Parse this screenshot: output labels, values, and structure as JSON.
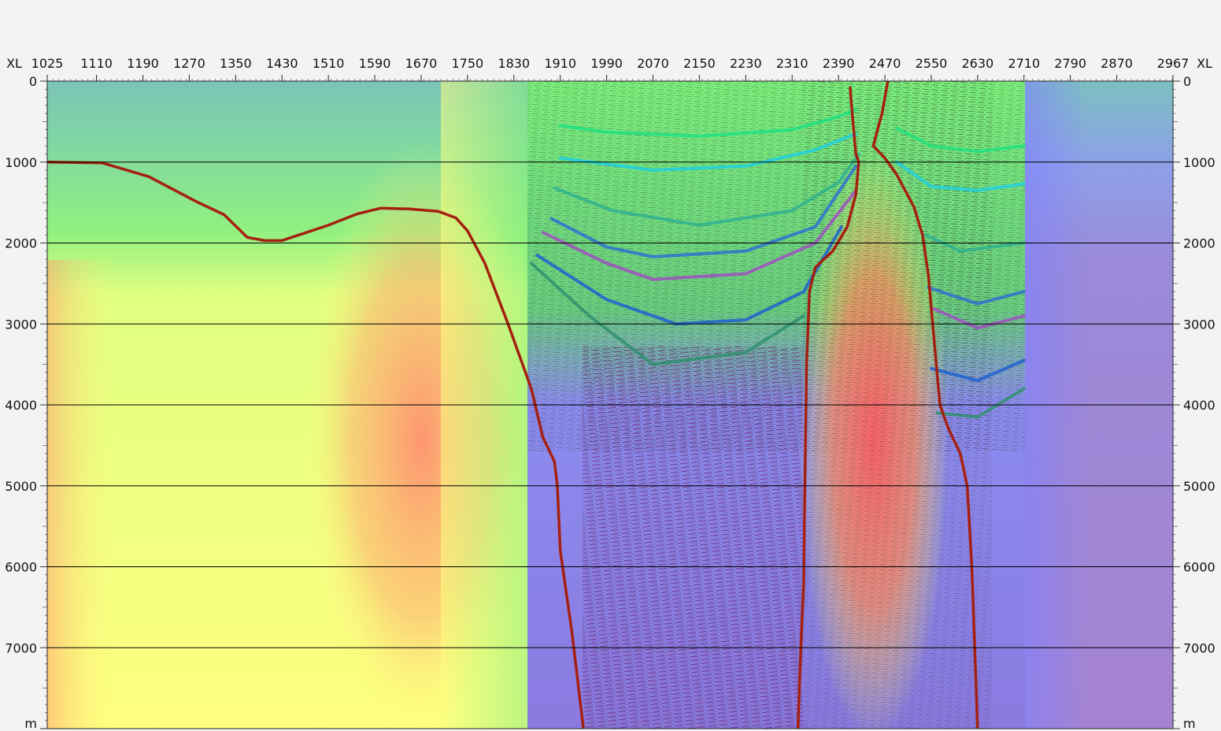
{
  "chart_data": {
    "type": "heatmap",
    "title": "",
    "x_axis": {
      "label": "XL",
      "ticks": [
        1025,
        1110,
        1190,
        1270,
        1350,
        1430,
        1510,
        1590,
        1670,
        1750,
        1830,
        1910,
        1990,
        2070,
        2150,
        2230,
        2310,
        2390,
        2470,
        2550,
        2630,
        2710,
        2790,
        2870,
        2967
      ],
      "range": [
        1025,
        2967
      ]
    },
    "y_axis": {
      "unit": "m",
      "ticks": [
        0,
        1000,
        2000,
        3000,
        4000,
        5000,
        6000,
        7000
      ],
      "range": [
        0,
        8000
      ],
      "inverted": true
    },
    "grid": true,
    "colors": {
      "background_velocity": [
        "#7fbfbf",
        "#80ee80",
        "#ffff80",
        "#ff9080",
        "#8080ff",
        "#a080d0"
      ],
      "fault": "#a52010",
      "horizons": [
        "#20e080",
        "#20d0e0",
        "#30b090",
        "#3070d0",
        "#a050c0",
        "#2060d0",
        "#309070"
      ]
    },
    "seismic_extent_xl": [
      1860,
      2715
    ],
    "faults": [
      {
        "name": "",
        "points": [
          [
            1025,
            1000
          ],
          [
            1120,
            1010
          ],
          [
            1200,
            1180
          ],
          [
            1280,
            1480
          ],
          [
            1330,
            1650
          ],
          [
            1370,
            1930
          ],
          [
            1400,
            1970
          ],
          [
            1430,
            1970
          ],
          [
            1510,
            1780
          ],
          [
            1560,
            1640
          ],
          [
            1600,
            1570
          ],
          [
            1650,
            1580
          ],
          [
            1700,
            1610
          ],
          [
            1730,
            1690
          ],
          [
            1750,
            1850
          ],
          [
            1780,
            2250
          ],
          [
            1820,
            3000
          ],
          [
            1860,
            3800
          ],
          [
            1880,
            4400
          ],
          [
            1900,
            4700
          ],
          [
            1905,
            5000
          ],
          [
            1910,
            5800
          ],
          [
            1930,
            6800
          ],
          [
            1950,
            8000
          ]
        ]
      },
      {
        "name": "",
        "points": [
          [
            2410,
            80
          ],
          [
            2415,
            500
          ],
          [
            2420,
            900
          ],
          [
            2425,
            1000
          ],
          [
            2420,
            1400
          ],
          [
            2405,
            1800
          ],
          [
            2380,
            2100
          ],
          [
            2350,
            2300
          ],
          [
            2340,
            2600
          ],
          [
            2335,
            3500
          ],
          [
            2332,
            5000
          ],
          [
            2330,
            6200
          ],
          [
            2325,
            7000
          ],
          [
            2320,
            8000
          ]
        ]
      },
      {
        "name": "",
        "points": [
          [
            2475,
            0
          ],
          [
            2465,
            400
          ],
          [
            2450,
            800
          ],
          [
            2470,
            950
          ],
          [
            2490,
            1150
          ],
          [
            2520,
            1550
          ],
          [
            2535,
            1900
          ],
          [
            2545,
            2400
          ],
          [
            2555,
            3200
          ],
          [
            2565,
            4000
          ],
          [
            2580,
            4300
          ],
          [
            2600,
            4600
          ],
          [
            2612,
            5000
          ],
          [
            2620,
            6000
          ],
          [
            2625,
            7000
          ],
          [
            2630,
            8000
          ]
        ]
      }
    ],
    "horizons": [
      {
        "name": "",
        "color": "#20e080",
        "points": [
          [
            1910,
            550
          ],
          [
            1990,
            630
          ],
          [
            2150,
            680
          ],
          [
            2310,
            600
          ],
          [
            2390,
            440
          ],
          [
            2420,
            350
          ]
        ],
        "points_right": [
          [
            2490,
            580
          ],
          [
            2550,
            800
          ],
          [
            2630,
            870
          ],
          [
            2710,
            800
          ]
        ]
      },
      {
        "name": "",
        "color": "#20d0e0",
        "points": [
          [
            1910,
            950
          ],
          [
            2070,
            1100
          ],
          [
            2230,
            1050
          ],
          [
            2350,
            850
          ],
          [
            2420,
            650
          ]
        ],
        "points_right": [
          [
            2490,
            1000
          ],
          [
            2550,
            1300
          ],
          [
            2630,
            1350
          ],
          [
            2710,
            1270
          ]
        ]
      },
      {
        "name": "",
        "color": "#30b090",
        "points": [
          [
            1900,
            1320
          ],
          [
            2000,
            1600
          ],
          [
            2150,
            1780
          ],
          [
            2310,
            1600
          ],
          [
            2390,
            1250
          ],
          [
            2425,
            900
          ]
        ],
        "points_right": [
          [
            2540,
            1900
          ],
          [
            2600,
            2100
          ],
          [
            2710,
            2000
          ]
        ]
      },
      {
        "name": "",
        "color": "#3070d0",
        "points": [
          [
            1895,
            1700
          ],
          [
            1990,
            2050
          ],
          [
            2070,
            2170
          ],
          [
            2230,
            2100
          ],
          [
            2350,
            1800
          ],
          [
            2420,
            1050
          ]
        ],
        "points_right": [
          [
            2545,
            2550
          ],
          [
            2630,
            2750
          ],
          [
            2710,
            2600
          ]
        ]
      },
      {
        "name": "",
        "color": "#a050c0",
        "points": [
          [
            1880,
            1870
          ],
          [
            1990,
            2250
          ],
          [
            2070,
            2450
          ],
          [
            2230,
            2380
          ],
          [
            2350,
            2000
          ],
          [
            2420,
            1350
          ]
        ],
        "points_right": [
          [
            2550,
            2800
          ],
          [
            2630,
            3050
          ],
          [
            2710,
            2900
          ]
        ]
      },
      {
        "name": "",
        "color": "#2060d0",
        "points": [
          [
            1870,
            2150
          ],
          [
            1990,
            2700
          ],
          [
            2110,
            3000
          ],
          [
            2230,
            2950
          ],
          [
            2330,
            2600
          ],
          [
            2395,
            1800
          ]
        ],
        "points_right": [
          [
            2550,
            3550
          ],
          [
            2630,
            3700
          ],
          [
            2710,
            3450
          ]
        ]
      },
      {
        "name": "",
        "color": "#309070",
        "points": [
          [
            1860,
            2250
          ],
          [
            1960,
            2900
          ],
          [
            2070,
            3500
          ],
          [
            2230,
            3350
          ],
          [
            2330,
            2900
          ]
        ],
        "points_right": [
          [
            2560,
            4100
          ],
          [
            2630,
            4150
          ],
          [
            2710,
            3800
          ]
        ]
      }
    ]
  }
}
